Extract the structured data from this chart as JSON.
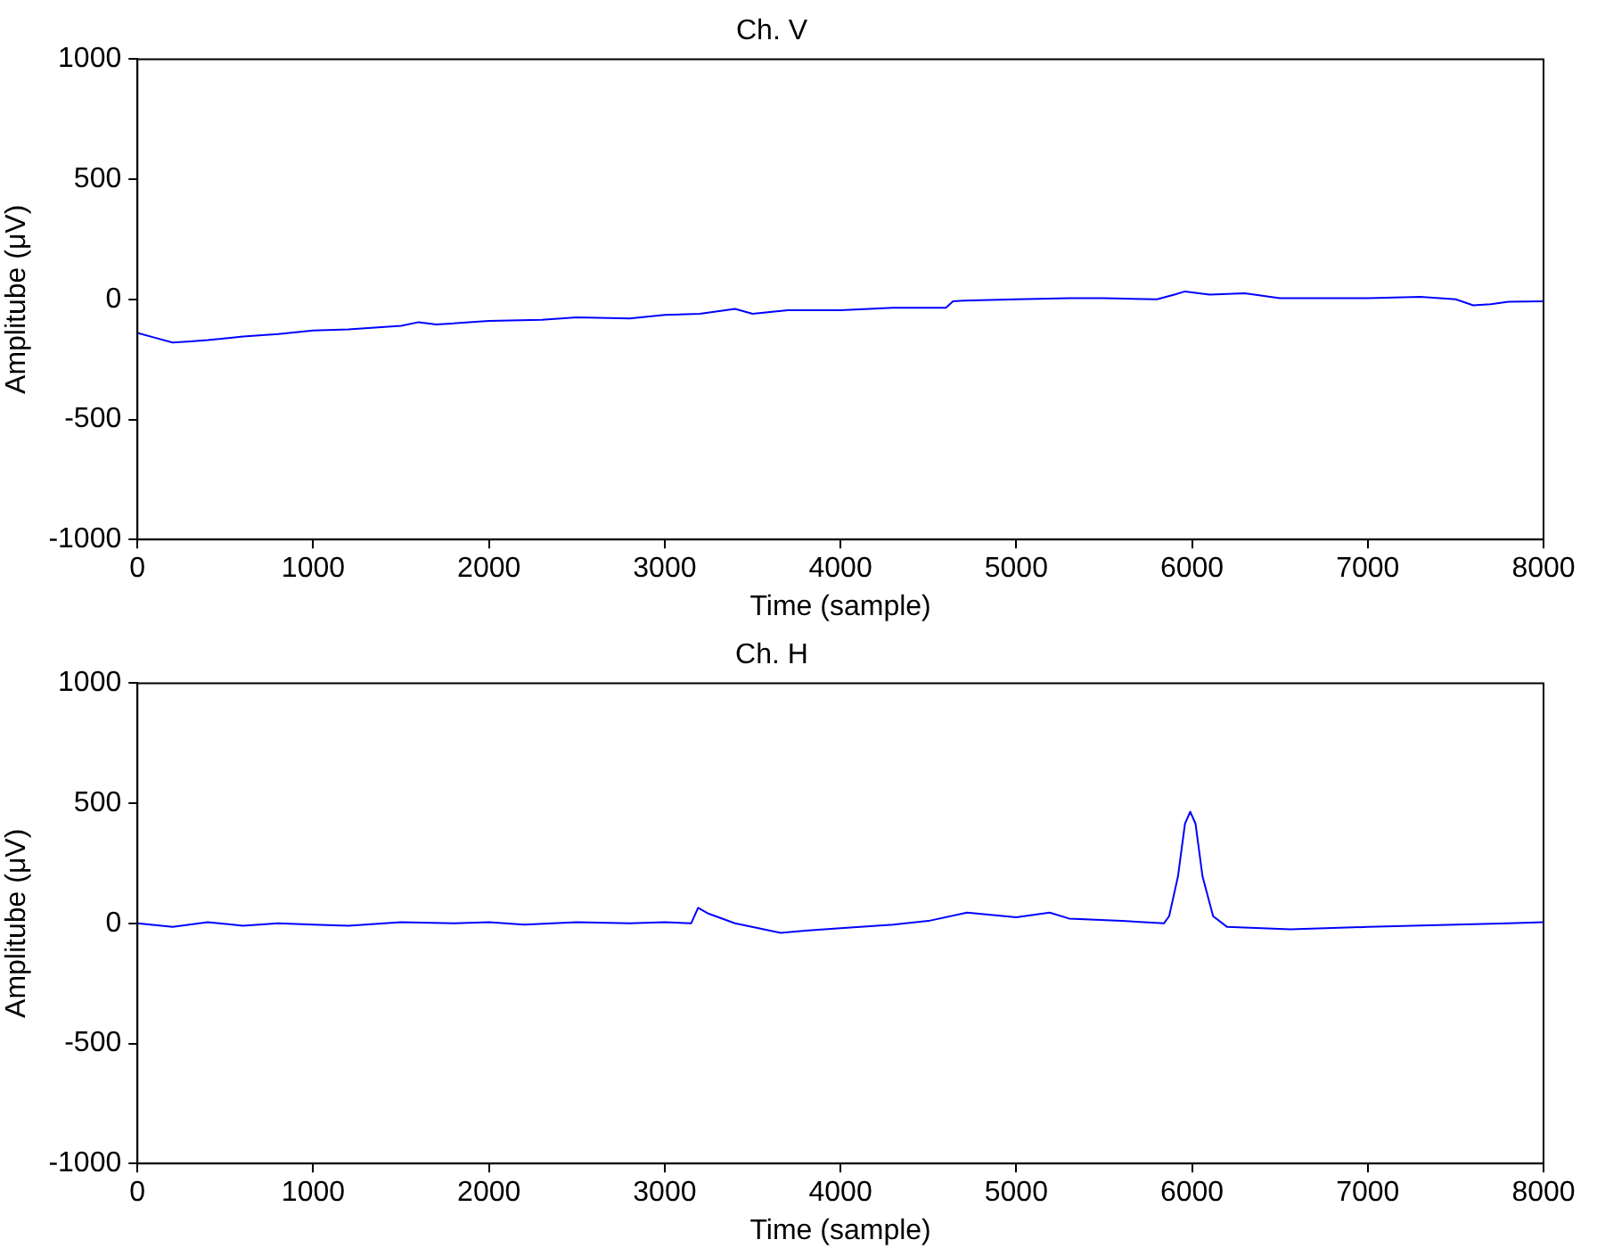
{
  "chart_data": [
    {
      "type": "line",
      "title": "Ch. V",
      "xlabel": "Time (sample)",
      "ylabel": "Amplitube (μV)",
      "xlim": [
        0,
        8000
      ],
      "xticks": [
        0,
        1000,
        2000,
        3000,
        4000,
        5000,
        6000,
        7000,
        8000
      ],
      "ylim": [
        -1000,
        1000
      ],
      "yticks": [
        -1000,
        -500,
        0,
        500,
        1000
      ],
      "grid": false,
      "legend": false,
      "marker": "none",
      "line_style": "solid",
      "series": [
        {
          "color": "#0000ff",
          "x": [
            0,
            100,
            200,
            300,
            400,
            600,
            800,
            1000,
            1200,
            1500,
            1600,
            1700,
            2000,
            2300,
            2500,
            2800,
            3000,
            3200,
            3300,
            3400,
            3500,
            3700,
            4000,
            4300,
            4600,
            4640,
            4700,
            5000,
            5300,
            5500,
            5800,
            5900,
            5960,
            6100,
            6300,
            6500,
            7000,
            7300,
            7500,
            7600,
            7700,
            7800,
            8000
          ],
          "values": [
            -140,
            -160,
            -180,
            -175,
            -170,
            -155,
            -145,
            -130,
            -125,
            -110,
            -95,
            -105,
            -90,
            -85,
            -75,
            -80,
            -65,
            -60,
            -50,
            -40,
            -60,
            -45,
            -45,
            -35,
            -35,
            -8,
            -5,
            0,
            5,
            5,
            0,
            20,
            33,
            20,
            25,
            5,
            5,
            10,
            0,
            -25,
            -20,
            -10,
            -8
          ]
        }
      ]
    },
    {
      "type": "line",
      "title": "Ch. H",
      "xlabel": "Time (sample)",
      "ylabel": "Amplitube (μV)",
      "xlim": [
        0,
        8000
      ],
      "xticks": [
        0,
        1000,
        2000,
        3000,
        4000,
        5000,
        6000,
        7000,
        8000
      ],
      "ylim": [
        -1000,
        1000
      ],
      "yticks": [
        -1000,
        -500,
        0,
        500,
        1000
      ],
      "grid": false,
      "legend": false,
      "marker": "none",
      "line_style": "solid",
      "series": [
        {
          "color": "#0000ff",
          "x": [
            0,
            200,
            400,
            600,
            800,
            1000,
            1200,
            1500,
            1800,
            2000,
            2200,
            2500,
            2800,
            3000,
            3150,
            3190,
            3250,
            3400,
            3660,
            3800,
            4000,
            4300,
            4500,
            4720,
            5000,
            5190,
            5300,
            5600,
            5840,
            5870,
            5920,
            5960,
            5990,
            6020,
            6060,
            6120,
            6200,
            6560,
            7000,
            7500,
            7800,
            8000
          ],
          "values": [
            0,
            -15,
            5,
            -10,
            0,
            -5,
            -10,
            5,
            0,
            5,
            -5,
            5,
            0,
            5,
            0,
            65,
            40,
            0,
            -40,
            -30,
            -20,
            -5,
            10,
            45,
            25,
            45,
            20,
            10,
            0,
            30,
            195,
            415,
            465,
            415,
            195,
            30,
            -15,
            -25,
            -15,
            -5,
            0,
            5
          ]
        }
      ]
    }
  ]
}
